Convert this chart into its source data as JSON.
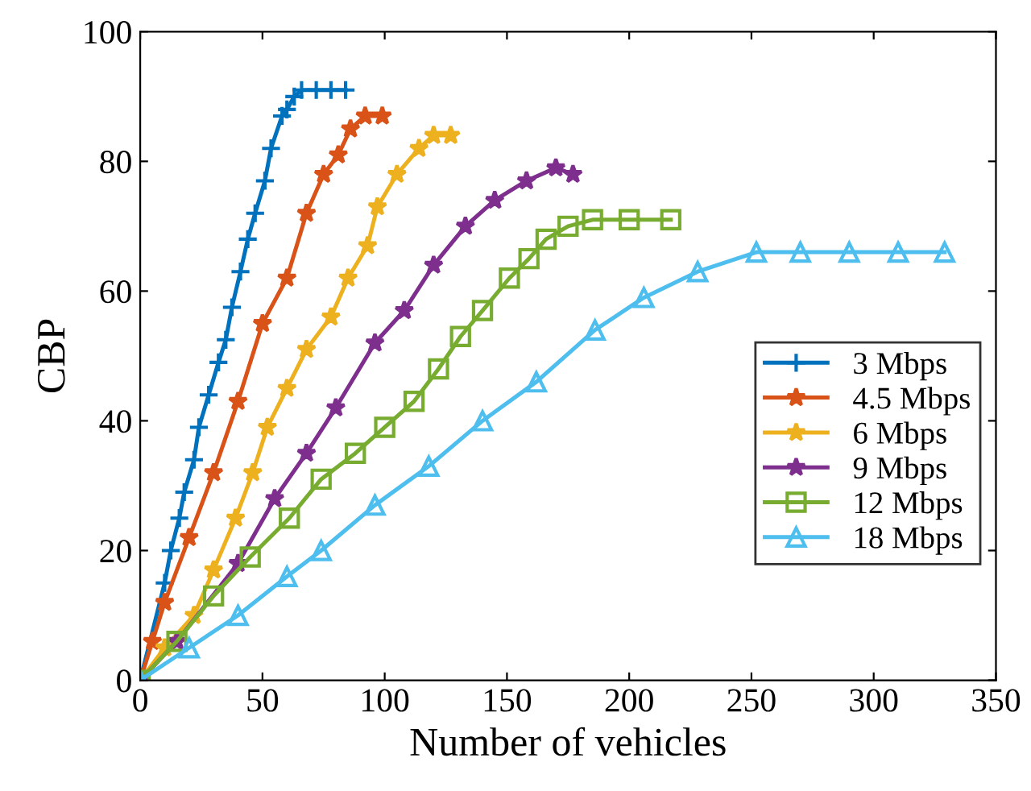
{
  "chart_data": {
    "type": "line",
    "xlabel": "Number of vehicles",
    "ylabel": "CBP",
    "xlim": [
      0,
      350
    ],
    "xticks": [
      0,
      50,
      100,
      150,
      200,
      250,
      300,
      350
    ],
    "ylim": [
      0,
      100
    ],
    "yticks": [
      0,
      20,
      40,
      60,
      80,
      100
    ],
    "grid": false,
    "legend": "right",
    "line_style": "solid",
    "series": [
      {
        "name": "3 Mbps",
        "color": "#0072bd",
        "marker": "cross",
        "x": [
          0,
          10,
          12.5,
          16,
          18,
          22,
          24,
          28,
          32,
          35,
          37.5,
          41,
          44,
          47,
          51,
          53.5,
          58,
          60,
          63,
          66,
          72,
          78,
          84
        ],
        "values": [
          0,
          15,
          20,
          25,
          29,
          34,
          39,
          44,
          49,
          52.5,
          57.5,
          63,
          68,
          72,
          77,
          82,
          87,
          88,
          90,
          91,
          91,
          91,
          91
        ]
      },
      {
        "name": "4.5 Mbps",
        "color": "#d95319",
        "marker": "star",
        "x": [
          0,
          5,
          10,
          20,
          30,
          40,
          50,
          60,
          68,
          75,
          81,
          86,
          92,
          99
        ],
        "values": [
          0,
          6,
          12,
          22,
          32,
          43,
          55,
          62,
          72,
          78,
          81,
          85,
          87,
          87
        ]
      },
      {
        "name": "6 Mbps",
        "color": "#edb120",
        "marker": "star",
        "x": [
          0,
          10,
          22,
          30,
          39,
          46,
          52,
          60,
          68,
          78,
          85,
          93,
          97,
          105,
          114,
          120,
          127
        ],
        "values": [
          0,
          5,
          10,
          17,
          25,
          32,
          39,
          45,
          51,
          56,
          62,
          67,
          73,
          78,
          82,
          84,
          84
        ]
      },
      {
        "name": "9 Mbps",
        "color": "#7e2f8e",
        "marker": "star",
        "x": [
          0,
          15,
          40,
          55,
          68,
          80,
          96,
          108,
          120,
          133,
          145,
          158,
          170,
          177
        ],
        "values": [
          0,
          6,
          18,
          28,
          35,
          42,
          52,
          57,
          64,
          70,
          74,
          77,
          79,
          78
        ]
      },
      {
        "name": "12 Mbps",
        "color": "#77ac30",
        "marker": "square",
        "x": [
          0,
          15,
          30,
          45,
          61,
          74,
          88,
          100,
          112,
          122,
          131,
          140,
          151,
          159,
          166,
          175,
          185,
          200,
          217
        ],
        "values": [
          0,
          6,
          13,
          19,
          25,
          31,
          35,
          39,
          43,
          48,
          53,
          57,
          62,
          65,
          68,
          70,
          71,
          71,
          71
        ]
      },
      {
        "name": "18 Mbps",
        "color": "#4dbeee",
        "marker": "triangle",
        "x": [
          0,
          20,
          40,
          60,
          74,
          96,
          118,
          140,
          162,
          186,
          206,
          228,
          252,
          270,
          290,
          310,
          329
        ],
        "values": [
          0,
          5,
          10,
          16,
          20,
          27,
          33,
          40,
          46,
          54,
          59,
          63,
          66,
          66,
          66,
          66,
          66
        ]
      }
    ]
  }
}
